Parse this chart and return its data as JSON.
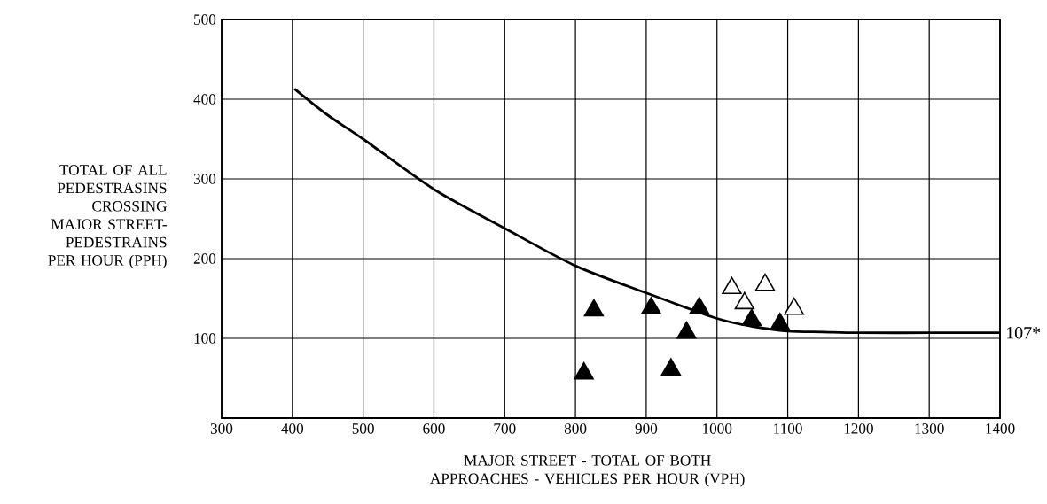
{
  "chart_data": {
    "type": "scatter",
    "xlabel": "MAJOR STREET - TOTAL OF BOTH APPROACHES - VEHICLES PER HOUR (VPH)",
    "ylabel": "TOTAL OF ALL PEDESTRASINS CROSSING MAJOR STREET- PEDESTRAINS PER HOUR (PPH)",
    "xlim": [
      300,
      1400
    ],
    "ylim": [
      0,
      500
    ],
    "xticks": [
      300,
      400,
      500,
      600,
      700,
      800,
      900,
      1000,
      1100,
      1200,
      1300,
      1400
    ],
    "yticks": [
      100,
      200,
      300,
      400,
      500
    ],
    "grid": true,
    "series": [
      {
        "type": "line",
        "color": "#000000",
        "x": [
          403,
          450,
          500,
          600,
          700,
          800,
          900,
          1000,
          1050,
          1100,
          1150,
          1200,
          1300,
          1400
        ],
        "values": [
          413,
          380,
          350,
          287,
          238,
          191,
          157,
          125,
          115,
          109,
          108,
          107,
          107,
          107
        ]
      },
      {
        "marker": "triangle",
        "color": "#000000",
        "x": [
          812,
          826,
          907,
          935,
          957,
          975,
          1049,
          1089
        ],
        "values": [
          56,
          135,
          138,
          61,
          107,
          138,
          123,
          118
        ]
      },
      {
        "marker": "triangle",
        "color": "#ffffff",
        "x": [
          1021,
          1039,
          1068,
          1109
        ],
        "values": [
          163,
          144,
          167,
          137
        ]
      }
    ],
    "annotations": [
      {
        "text": "107*",
        "x": 1400,
        "y": 107
      }
    ]
  }
}
